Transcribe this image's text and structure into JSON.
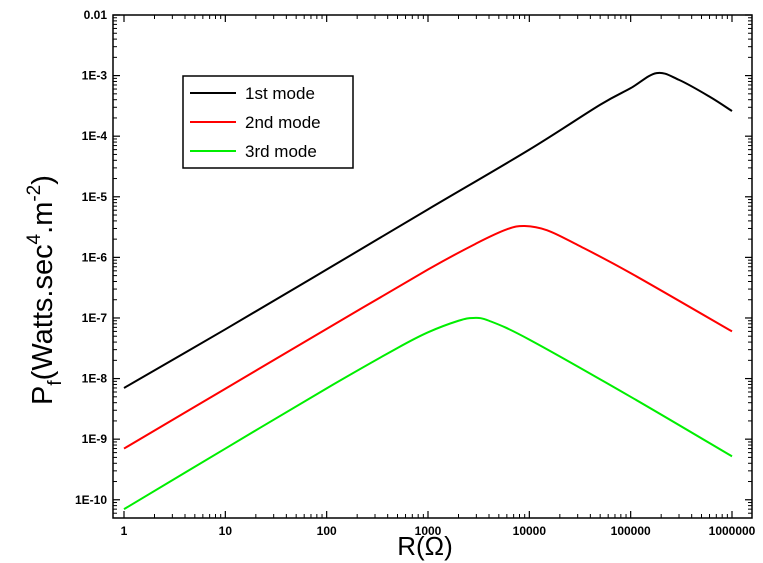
{
  "chart_data": {
    "type": "line",
    "xlabel": "R(Ω)",
    "ylabel": {
      "base": "P",
      "sub": "f",
      "mid": "(Watts.sec",
      "sup1": "4",
      "mid2": ".m",
      "sup2": "-2",
      "end": ")"
    },
    "x_scale": "log",
    "y_scale": "log",
    "xlim": [
      1,
      1000000
    ],
    "ylim": [
      5e-11,
      0.01
    ],
    "grid": false,
    "legend_position": "top-left",
    "x_ticks": [
      {
        "value": 1,
        "label": "1"
      },
      {
        "value": 10,
        "label": "10"
      },
      {
        "value": 100,
        "label": "100"
      },
      {
        "value": 1000,
        "label": "1000"
      },
      {
        "value": 10000,
        "label": "10000"
      },
      {
        "value": 100000,
        "label": "100000"
      },
      {
        "value": 1000000,
        "label": "1000000"
      }
    ],
    "y_ticks": [
      {
        "value": 1e-10,
        "label": "1E-10"
      },
      {
        "value": 1e-09,
        "label": "1E-9"
      },
      {
        "value": 1e-08,
        "label": "1E-8"
      },
      {
        "value": 1e-07,
        "label": "1E-7"
      },
      {
        "value": 1e-06,
        "label": "1E-6"
      },
      {
        "value": 1e-05,
        "label": "1E-5"
      },
      {
        "value": 0.0001,
        "label": "1E-4"
      },
      {
        "value": 0.001,
        "label": "1E-3"
      },
      {
        "value": 0.01,
        "label": "0.01"
      }
    ],
    "series": [
      {
        "name": "1st mode",
        "color": "#000000",
        "x": [
          1,
          10,
          100,
          1000,
          10000,
          50000,
          100000,
          180000,
          300000,
          600000,
          1000000
        ],
        "y": [
          7e-09,
          6.5e-08,
          6.3e-07,
          6.2e-06,
          6e-05,
          0.00033,
          0.00062,
          0.0011,
          0.00085,
          0.00045,
          0.00026
        ]
      },
      {
        "name": "2nd mode",
        "color": "#ff0000",
        "x": [
          1,
          10,
          100,
          1000,
          3000,
          6000,
          9000,
          15000,
          30000,
          100000,
          1000000
        ],
        "y": [
          7e-10,
          6.8e-09,
          6.6e-08,
          6.3e-07,
          1.7e-06,
          2.9e-06,
          3.3e-06,
          2.8e-06,
          1.6e-06,
          5.5e-07,
          6e-08
        ]
      },
      {
        "name": "3rd mode",
        "color": "#00ee00",
        "x": [
          1,
          10,
          100,
          500,
          1000,
          2000,
          2800,
          4000,
          10000,
          100000,
          1000000
        ],
        "y": [
          7e-11,
          7e-10,
          6.9e-09,
          3.2e-08,
          5.8e-08,
          9e-08,
          1e-07,
          9e-08,
          4.4e-08,
          5e-09,
          5.2e-10
        ]
      }
    ]
  }
}
